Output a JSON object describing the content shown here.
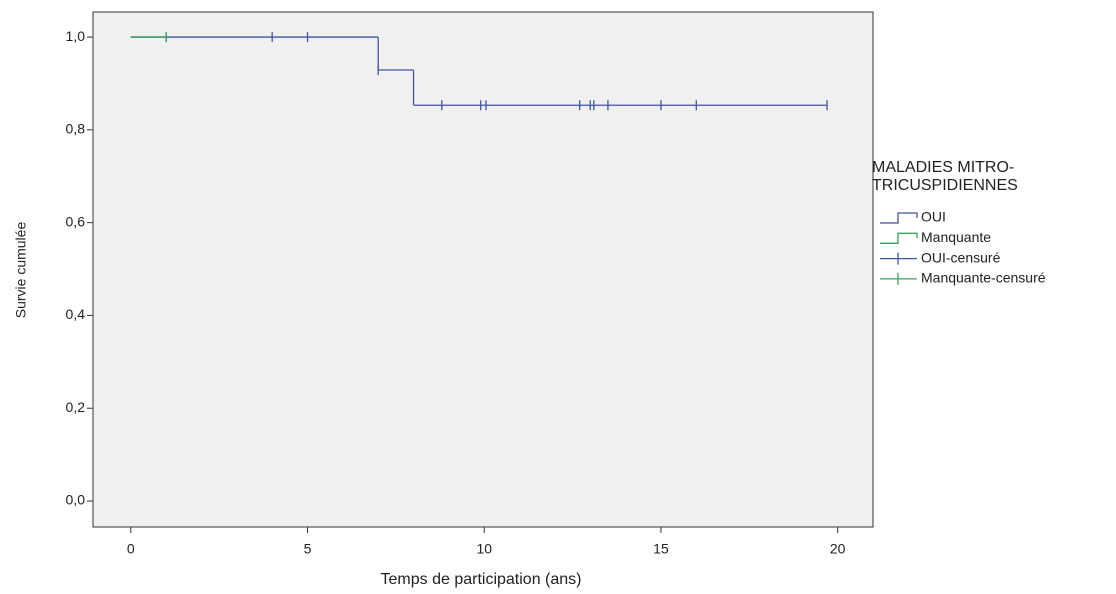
{
  "chart_data": {
    "type": "survival",
    "x_label": "Temps de participation (ans)",
    "y_label": "Survie cumulée",
    "xlim": [
      -1.07,
      21
    ],
    "ylim": [
      -0.056,
      1.054
    ],
    "xticks": [
      0,
      5,
      10,
      15,
      20
    ],
    "yticks": [
      {
        "value": 0,
        "label": "0,0"
      },
      {
        "value": 0.2,
        "label": "0,2"
      },
      {
        "value": 0.4,
        "label": "0,4"
      },
      {
        "value": 0.6,
        "label": "0,6"
      },
      {
        "value": 0.8,
        "label": "0,8"
      },
      {
        "value": 1,
        "label": "1,0"
      }
    ],
    "legend_title": [
      "MALADIES MITRO-",
      "TRICUSPIDIENNES"
    ],
    "legend_position": "right",
    "series": [
      {
        "name": "OUI",
        "color": "#3f55a5",
        "x": [
          0,
          7,
          8,
          19.7
        ],
        "values": [
          1,
          0.929,
          0.853,
          0.853
        ],
        "censored": {
          "name": "OUI-censuré",
          "x": [
            1,
            4,
            5,
            7,
            8.8,
            9.9,
            10.05,
            12.7,
            13.0,
            13.1,
            13.5,
            15.0,
            16.0,
            19.7
          ],
          "values": [
            1,
            1,
            1,
            0.929,
            0.853,
            0.853,
            0.853,
            0.853,
            0.853,
            0.853,
            0.853,
            0.853,
            0.853,
            0.853
          ]
        }
      },
      {
        "name": "Manquante",
        "color": "#3aa35a",
        "x": [
          0,
          1
        ],
        "values": [
          1,
          1
        ],
        "censored": {
          "name": "Manquante-censuré",
          "x": [
            1
          ],
          "values": [
            1
          ]
        }
      }
    ]
  }
}
